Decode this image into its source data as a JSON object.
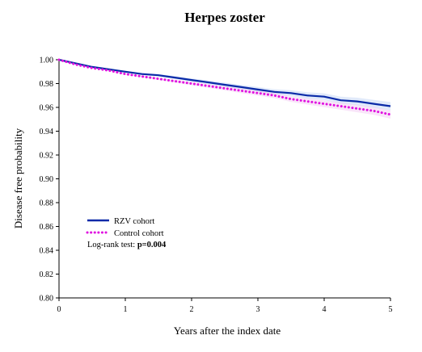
{
  "chart_data": {
    "type": "line",
    "title": "Herpes zoster",
    "xlabel": "Years after the index date",
    "ylabel": "Disease free probability",
    "xlim": [
      0,
      5
    ],
    "ylim": [
      0.8,
      1.0
    ],
    "x_ticks": [
      "0",
      "1",
      "2",
      "3",
      "4",
      "5"
    ],
    "y_ticks": [
      "0.80",
      "0.82",
      "0.84",
      "0.86",
      "0.88",
      "0.90",
      "0.92",
      "0.94",
      "0.96",
      "0.98",
      "1.00"
    ],
    "grid": false,
    "legend_position": "lower-left",
    "series": [
      {
        "name": "RZV cohort",
        "color": "#0a2aa8",
        "style": "solid",
        "x": [
          0,
          0.25,
          0.5,
          0.75,
          1.0,
          1.25,
          1.5,
          1.75,
          2.0,
          2.25,
          2.5,
          2.75,
          3.0,
          3.25,
          3.5,
          3.75,
          4.0,
          4.25,
          4.5,
          4.75,
          5.0
        ],
        "y": [
          1.0,
          0.997,
          0.994,
          0.992,
          0.99,
          0.988,
          0.987,
          0.985,
          0.983,
          0.981,
          0.979,
          0.977,
          0.975,
          0.973,
          0.972,
          0.97,
          0.969,
          0.966,
          0.965,
          0.963,
          0.961
        ]
      },
      {
        "name": "Control cohort",
        "color": "#e010e0",
        "style": "dotted",
        "x": [
          0,
          0.25,
          0.5,
          0.75,
          1.0,
          1.25,
          1.5,
          1.75,
          2.0,
          2.25,
          2.5,
          2.75,
          3.0,
          3.25,
          3.5,
          3.75,
          4.0,
          4.25,
          4.5,
          4.75,
          5.0
        ],
        "y": [
          1.0,
          0.996,
          0.993,
          0.991,
          0.988,
          0.986,
          0.984,
          0.982,
          0.98,
          0.978,
          0.976,
          0.974,
          0.972,
          0.97,
          0.967,
          0.965,
          0.963,
          0.961,
          0.959,
          0.957,
          0.954
        ]
      }
    ],
    "annotation": {
      "prefix": "Log-rank test: ",
      "value": "p=0.004"
    }
  }
}
